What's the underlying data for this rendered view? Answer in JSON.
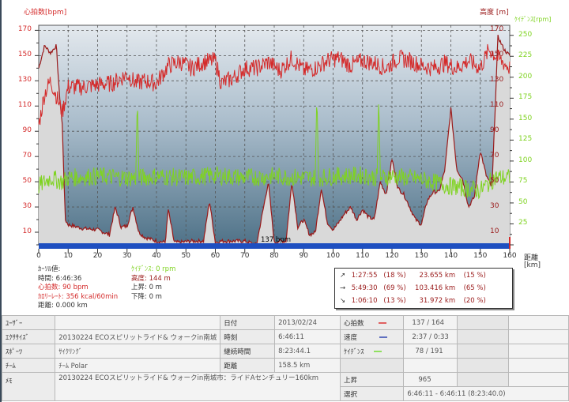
{
  "chart_data": {
    "type": "line",
    "title": "",
    "xlabel": "距離 [km]",
    "ylabel_left": "心拍数[bpm]",
    "ylabel_right_altitude": "高度 [m]",
    "ylabel_right_cadence": "ｹｲﾃﾞﾝｽ[rpm]",
    "xlim": [
      0,
      160
    ],
    "ylim_hr": [
      0,
      175
    ],
    "ylim_cadence": [
      0,
      260
    ],
    "x_ticks": [
      0,
      10,
      20,
      30,
      40,
      50,
      60,
      70,
      80,
      90,
      100,
      110,
      120,
      130,
      140,
      150,
      160
    ],
    "y_ticks_hr": [
      10,
      30,
      50,
      70,
      90,
      110,
      130,
      150,
      170
    ],
    "y_ticks_altitude": [
      10,
      30,
      50,
      70,
      90,
      110,
      130,
      150,
      170
    ],
    "y_ticks_cadence": [
      25,
      50,
      75,
      100,
      125,
      150,
      175,
      200,
      225,
      250
    ],
    "grid": true,
    "average_marker": "137 bpm",
    "series": [
      {
        "name": "心拍数",
        "color": "#d42a2a",
        "unit": "bpm",
        "x": [
          0,
          2,
          4,
          6,
          8,
          10,
          15,
          20,
          25,
          30,
          33,
          36,
          40,
          44,
          48,
          52,
          56,
          60,
          62,
          66,
          70,
          74,
          78,
          82,
          86,
          90,
          94,
          98,
          102,
          106,
          110,
          114,
          118,
          122,
          126,
          130,
          134,
          138,
          142,
          146,
          150,
          153,
          156,
          160
        ],
        "values": [
          95,
          120,
          130,
          118,
          105,
          125,
          125,
          127,
          128,
          135,
          128,
          130,
          128,
          142,
          145,
          140,
          145,
          146,
          128,
          132,
          140,
          140,
          145,
          138,
          148,
          138,
          140,
          146,
          148,
          142,
          146,
          144,
          140,
          148,
          146,
          142,
          140,
          144,
          140,
          146,
          140,
          155,
          148,
          140
        ]
      },
      {
        "name": "高度",
        "color": "#9a1a1a",
        "unit": "m",
        "x": [
          0,
          2,
          4,
          6,
          7,
          8,
          9,
          10,
          15,
          20,
          24,
          26,
          28,
          30,
          32,
          34,
          36,
          40,
          43,
          44,
          46,
          48,
          52,
          56,
          58,
          60,
          62,
          66,
          70,
          74,
          78,
          80,
          82,
          84,
          86,
          88,
          90,
          92,
          94,
          96,
          98,
          100,
          102,
          104,
          106,
          108,
          110,
          112,
          114,
          116,
          118,
          120,
          122,
          124,
          126,
          128,
          130,
          132,
          134,
          136,
          138,
          140,
          142,
          144,
          146,
          148,
          150,
          152,
          154,
          156,
          158,
          160
        ],
        "values": [
          140,
          158,
          152,
          158,
          120,
          95,
          20,
          16,
          13,
          12,
          8,
          30,
          14,
          15,
          30,
          10,
          6,
          3,
          2,
          28,
          2,
          2,
          3,
          3,
          35,
          2,
          3,
          3,
          3,
          0,
          50,
          2,
          3,
          3,
          50,
          14,
          20,
          8,
          10,
          45,
          18,
          12,
          18,
          25,
          30,
          20,
          28,
          22,
          20,
          50,
          40,
          68,
          45,
          40,
          30,
          20,
          16,
          35,
          42,
          42,
          60,
          108,
          60,
          52,
          30,
          38,
          75,
          55,
          45,
          165,
          155,
          150
        ]
      },
      {
        "name": "ｹｲﾃﾞﾝｽ",
        "color": "#7fd321",
        "unit": "rpm",
        "x": [
          0,
          4,
          8,
          10,
          20,
          30,
          33,
          33.5,
          34,
          40,
          50,
          60,
          70,
          80,
          90,
          94,
          94.5,
          95,
          100,
          110,
          115,
          115.5,
          116,
          120,
          130,
          140,
          150,
          155,
          160
        ],
        "values": [
          70,
          80,
          75,
          80,
          82,
          80,
          80,
          180,
          80,
          82,
          80,
          83,
          80,
          82,
          80,
          80,
          185,
          80,
          82,
          83,
          80,
          182,
          80,
          82,
          78,
          70,
          65,
          80,
          80
        ]
      }
    ]
  },
  "axes": {
    "hr_title": "心拍数[bpm]",
    "alt_title": "高度 [m]",
    "cad_title": "ｹｲﾃﾞﾝｽ[rpm]",
    "x_title_1": "距離",
    "x_title_2": "[km]",
    "hr_ticks": [
      "170",
      "150",
      "130",
      "110",
      "90",
      "70",
      "50",
      "30",
      "10"
    ],
    "alt_ticks": [
      "170",
      "150",
      "130",
      "110",
      "90",
      "70",
      "50",
      "30",
      "10"
    ],
    "cad_ticks": [
      "250",
      "225",
      "200",
      "175",
      "150",
      "125",
      "100",
      "75",
      "50",
      "25"
    ],
    "x_ticks": [
      "0",
      "10",
      "20",
      "30",
      "40",
      "50",
      "60",
      "70",
      "80",
      "90",
      "100",
      "110",
      "120",
      "130",
      "140",
      "150",
      "160"
    ],
    "avg_label": "137 bpm"
  },
  "cursor": {
    "title": "ｶｰｿﾙ値:",
    "time": "時間: 6:46:36",
    "hr": "心拍数: 90 bpm",
    "calorie": "ｶﾛﾘｰﾚｰﾄ: 356 kcal/60min",
    "distance": "距離: 0.000 km",
    "cadence": "ｹｲﾃﾞﾝｽ: 0 rpm",
    "altitude": "高度: 144 m",
    "ascent": "上昇: 0 m",
    "descent": "下降: 0 m"
  },
  "summary": [
    {
      "arrow": "↗",
      "time": "1:27:55",
      "time_pct": "(18 %)",
      "dist": "23.655 km",
      "dist_pct": "(15 %)"
    },
    {
      "arrow": "→",
      "time": "5:49:30",
      "time_pct": "(69 %)",
      "dist": "103.416 km",
      "dist_pct": "(65 %)"
    },
    {
      "arrow": "↘",
      "time": "1:06:10",
      "time_pct": "(13 %)",
      "dist": "31.972 km",
      "dist_pct": "(20 %)"
    }
  ],
  "info": {
    "user_label": "ﾕｰｻﾞｰ",
    "user_value": "",
    "exercise_label": "ｴｸｻｻｲｽﾞ",
    "exercise_value": "20130224 ECOスピリットライド& ウォークin南城",
    "sport_label": "ｽﾎﾟｰﾂ",
    "sport_value": "ｻｲｸﾘﾝｸﾞ",
    "team_label": "ﾁｰﾑ",
    "team_value": "ﾁｰﾑ Polar",
    "memo_label": "ﾒﾓ",
    "memo_value": "20130224 ECOスピリットライド& ウォークin南城市：ライドAセンチュリー160km",
    "date_label": "日付",
    "date_value": "2013/02/24",
    "time_label": "時刻",
    "time_value": "6:46:11",
    "duration_label": "継続時間",
    "duration_value": "8:23:44.1",
    "distance_label": "距離",
    "distance_value": "158.5 km",
    "hr_label": "心拍数",
    "hr_value": "137 / 164",
    "hr_color": "#e06060",
    "speed_label": "速度",
    "speed_value": "2:37 / 0:33",
    "speed_color": "#6070c0",
    "cad_label": "ｹｲﾃﾞﾝｽ",
    "cad_value": "78 / 191",
    "cad_color": "#90e060",
    "ascent_label": "上昇",
    "ascent_value": "965",
    "select_label": "選択",
    "select_value": "6:46:11 - 6:46:11 (8:23:40.0)"
  }
}
